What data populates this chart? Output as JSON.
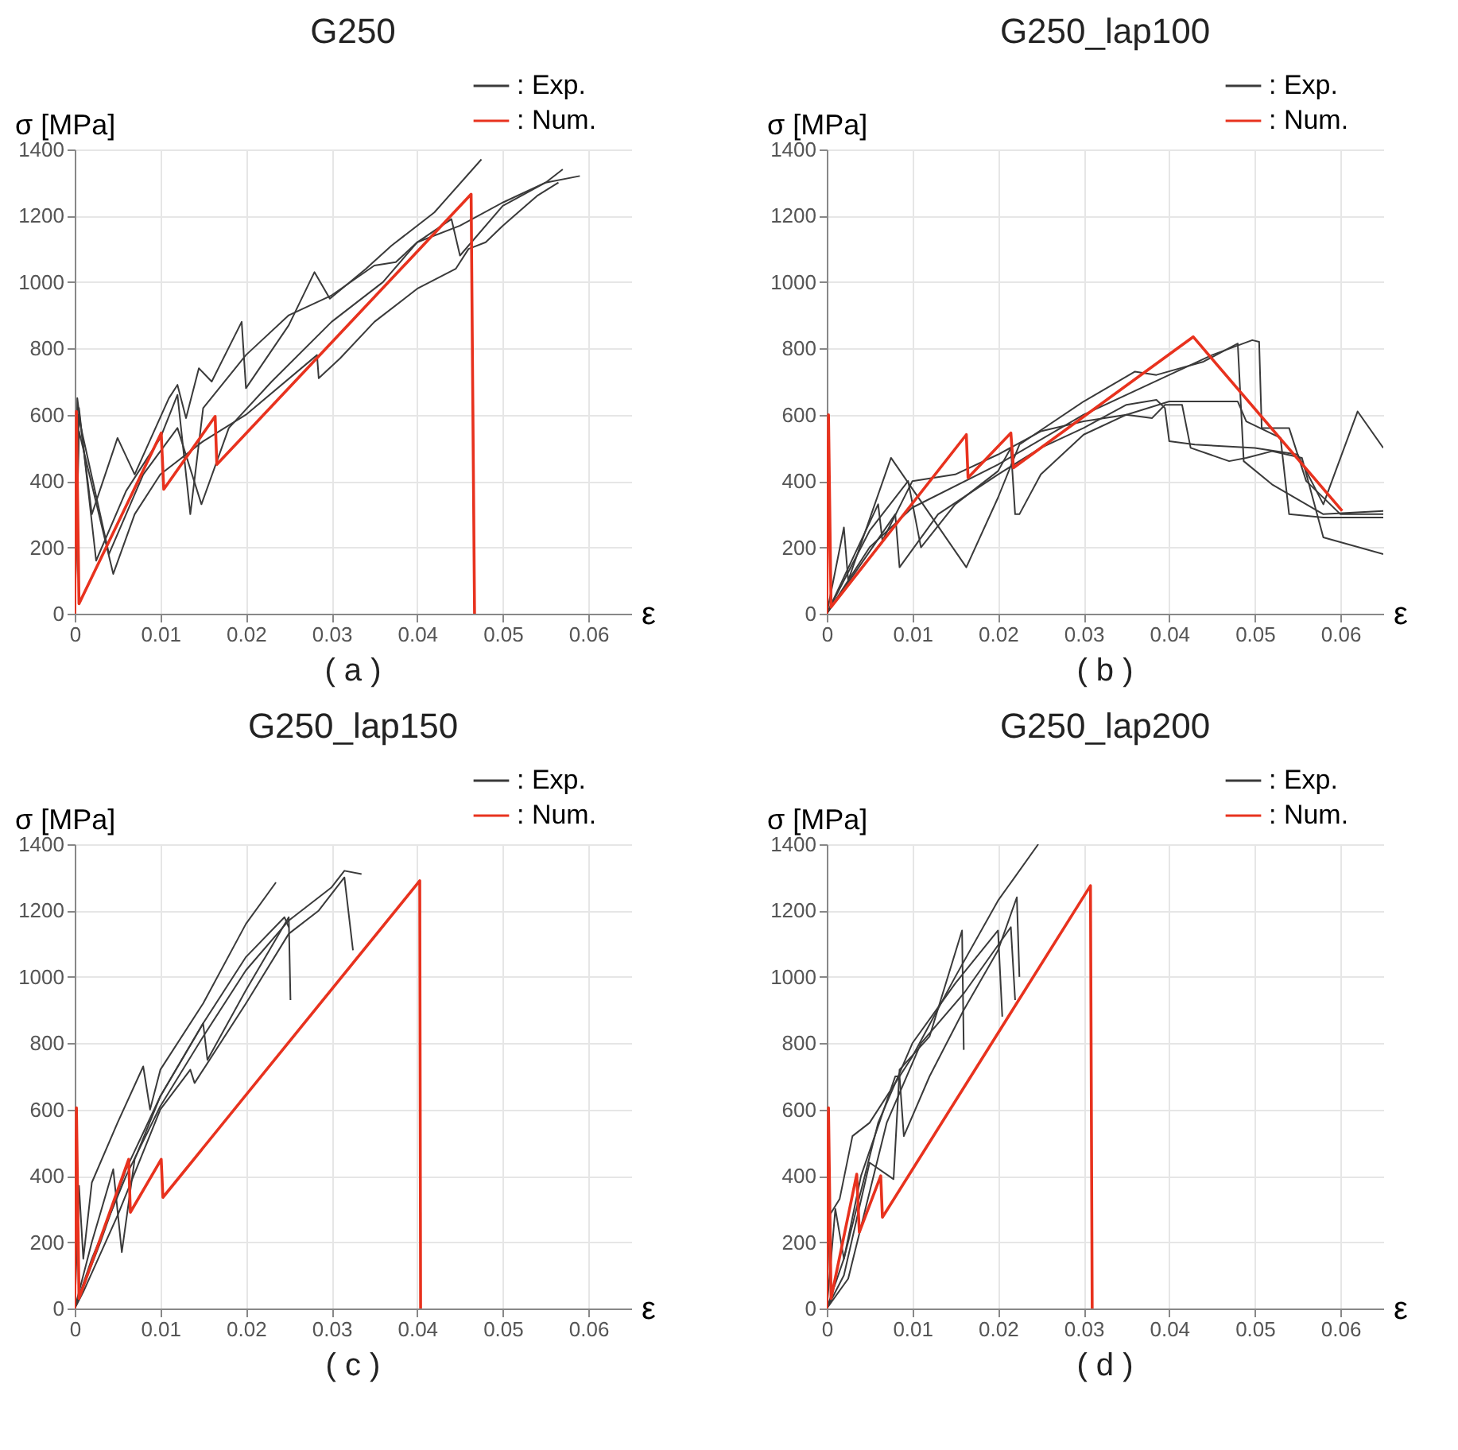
{
  "chart_data": [
    {
      "type": "line",
      "title": "G250",
      "xlabel": "ε",
      "ylabel": "σ [MPa]",
      "annotations": [
        "( a )"
      ],
      "xlim": [
        0,
        0.065
      ],
      "xticks": [
        0,
        0.01,
        0.02,
        0.03,
        0.04,
        0.05,
        0.06
      ],
      "ylim": [
        0,
        1400
      ],
      "yticks": [
        0,
        200,
        400,
        600,
        800,
        1000,
        1200,
        1400
      ],
      "grid": true,
      "legend": "top right",
      "series": [
        {
          "name": ": Exp.",
          "color": "#3a3a3a",
          "x": [
            0,
            0.0003,
            0.002,
            0.005,
            0.007,
            0.011,
            0.012,
            0.013,
            0.0145,
            0.016,
            0.0195,
            0.02,
            0.025,
            0.028,
            0.0298,
            0.034,
            0.037,
            0.042,
            0.0475
          ],
          "values": [
            0,
            650,
            300,
            530,
            420,
            650,
            690,
            590,
            740,
            700,
            880,
            680,
            870,
            1030,
            950,
            1040,
            1110,
            1210,
            1370
          ]
        },
        {
          "color": "#3a3a3a",
          "x": [
            0,
            0.0005,
            0.0025,
            0.006,
            0.01,
            0.012,
            0.0135,
            0.015,
            0.02,
            0.025,
            0.03,
            0.035,
            0.0375,
            0.04,
            0.045,
            0.05,
            0.055,
            0.057
          ],
          "values": [
            0,
            620,
            160,
            370,
            530,
            660,
            300,
            620,
            780,
            900,
            960,
            1050,
            1060,
            1120,
            1170,
            1240,
            1300,
            1340
          ]
        },
        {
          "color": "#3a3a3a",
          "x": [
            0,
            0.0004,
            0.004,
            0.008,
            0.012,
            0.0148,
            0.018,
            0.023,
            0.03,
            0.036,
            0.04,
            0.044,
            0.045,
            0.05,
            0.055,
            0.059
          ],
          "values": [
            0,
            600,
            180,
            420,
            560,
            330,
            560,
            700,
            880,
            1000,
            1120,
            1190,
            1080,
            1230,
            1300,
            1320
          ]
        },
        {
          "color": "#3a3a3a",
          "x": [
            0,
            0.0005,
            0.0045,
            0.007,
            0.01,
            0.015,
            0.02,
            0.0283,
            0.0285,
            0.031,
            0.035,
            0.04,
            0.0445,
            0.046,
            0.048,
            0.05,
            0.054,
            0.0565
          ],
          "values": [
            0,
            550,
            120,
            300,
            420,
            520,
            600,
            780,
            710,
            770,
            880,
            980,
            1040,
            1100,
            1120,
            1170,
            1260,
            1300
          ]
        },
        {
          "name": ": Num.",
          "color": "#e8321e",
          "x": [
            0,
            0.0002,
            0.0005,
            0.0101,
            0.0104,
            0.0164,
            0.0166,
            0.0463,
            0.0467
          ],
          "values": [
            0,
            610,
            30,
            545,
            375,
            595,
            450,
            1265,
            0
          ]
        }
      ]
    },
    {
      "type": "line",
      "title": "G250_lap100",
      "xlabel": "ε",
      "ylabel": "σ [MPa]",
      "annotations": [
        "( b )"
      ],
      "xlim": [
        0,
        0.065
      ],
      "xticks": [
        0,
        0.01,
        0.02,
        0.03,
        0.04,
        0.05,
        0.06
      ],
      "ylim": [
        0,
        1400
      ],
      "yticks": [
        0,
        200,
        400,
        600,
        800,
        1000,
        1200,
        1400
      ],
      "grid": true,
      "legend": "top right",
      "series": [
        {
          "name": ": Exp.",
          "color": "#3a3a3a",
          "x": [
            0,
            0.002,
            0.0025,
            0.0075,
            0.0163,
            0.02,
            0.0225,
            0.03,
            0.036,
            0.0385,
            0.044,
            0.048,
            0.0487,
            0.052,
            0.058,
            0.065
          ],
          "values": [
            0,
            260,
            100,
            470,
            140,
            350,
            510,
            640,
            730,
            720,
            760,
            815,
            460,
            390,
            300,
            310
          ]
        },
        {
          "color": "#3a3a3a",
          "x": [
            0,
            0.005,
            0.0095,
            0.011,
            0.015,
            0.02,
            0.0215,
            0.022,
            0.0225,
            0.025,
            0.03,
            0.035,
            0.04,
            0.048,
            0.049,
            0.053,
            0.054,
            0.058,
            0.065
          ],
          "values": [
            0,
            250,
            400,
            200,
            330,
            430,
            500,
            300,
            300,
            420,
            540,
            600,
            640,
            640,
            580,
            530,
            300,
            290,
            290
          ]
        },
        {
          "color": "#3a3a3a",
          "x": [
            0,
            0.006,
            0.0065,
            0.01,
            0.015,
            0.02,
            0.025,
            0.03,
            0.035,
            0.038,
            0.0395,
            0.0415,
            0.0425,
            0.047,
            0.049,
            0.052,
            0.0555,
            0.058,
            0.065
          ],
          "values": [
            0,
            330,
            220,
            400,
            420,
            480,
            550,
            580,
            600,
            590,
            630,
            630,
            500,
            460,
            470,
            490,
            470,
            230,
            180
          ]
        },
        {
          "color": "#3a3a3a",
          "x": [
            0,
            0.008,
            0.0085,
            0.013,
            0.02,
            0.025,
            0.03,
            0.035,
            0.0385,
            0.0395,
            0.04,
            0.043,
            0.05,
            0.055,
            0.058,
            0.062,
            0.065
          ],
          "values": [
            0,
            300,
            140,
            300,
            420,
            500,
            560,
            630,
            645,
            620,
            520,
            510,
            500,
            480,
            330,
            610,
            500
          ]
        },
        {
          "color": "#3a3a3a",
          "x": [
            0,
            0.005,
            0.01,
            0.02,
            0.03,
            0.04,
            0.045,
            0.0497,
            0.0505,
            0.0508,
            0.054,
            0.056,
            0.06,
            0.065
          ],
          "values": [
            0,
            200,
            320,
            450,
            600,
            720,
            780,
            825,
            820,
            560,
            560,
            400,
            300,
            300
          ]
        },
        {
          "name": ": Num.",
          "color": "#e8321e",
          "x": [
            0,
            0.0002,
            0.0005,
            0.0163,
            0.0165,
            0.0215,
            0.0218,
            0.0428,
            0.0602
          ],
          "values": [
            0,
            600,
            20,
            540,
            410,
            545,
            440,
            835,
            310
          ]
        }
      ]
    },
    {
      "type": "line",
      "title": "G250_lap150",
      "xlabel": "ε",
      "ylabel": "σ [MPa]",
      "annotations": [
        "( c )"
      ],
      "xlim": [
        0,
        0.065
      ],
      "xticks": [
        0,
        0.01,
        0.02,
        0.03,
        0.04,
        0.05,
        0.06
      ],
      "ylim": [
        0,
        1400
      ],
      "yticks": [
        0,
        200,
        400,
        600,
        800,
        1000,
        1200,
        1400
      ],
      "grid": true,
      "legend": "top right",
      "series": [
        {
          "name": ": Exp.",
          "color": "#3a3a3a",
          "x": [
            0,
            0.0005,
            0.001,
            0.002,
            0.005,
            0.008,
            0.0088,
            0.01,
            0.015,
            0.02,
            0.0235
          ],
          "values": [
            0,
            370,
            150,
            380,
            560,
            730,
            600,
            720,
            920,
            1160,
            1285
          ]
        },
        {
          "color": "#3a3a3a",
          "x": [
            0,
            0.002,
            0.0045,
            0.0055,
            0.007,
            0.01,
            0.015,
            0.0155,
            0.02,
            0.025,
            0.0252
          ],
          "values": [
            0,
            200,
            420,
            170,
            450,
            640,
            860,
            750,
            960,
            1180,
            930
          ]
        },
        {
          "color": "#3a3a3a",
          "x": [
            0,
            0.001,
            0.005,
            0.01,
            0.0135,
            0.014,
            0.02,
            0.025,
            0.0285,
            0.0315,
            0.0325
          ],
          "values": [
            0,
            50,
            280,
            600,
            720,
            680,
            920,
            1130,
            1200,
            1300,
            1080
          ]
        },
        {
          "color": "#3a3a3a",
          "x": [
            0,
            0.002,
            0.006,
            0.01,
            0.015,
            0.02,
            0.025,
            0.03,
            0.0315,
            0.0335
          ],
          "values": [
            0,
            150,
            400,
            610,
            820,
            1020,
            1170,
            1270,
            1320,
            1310
          ]
        },
        {
          "color": "#3a3a3a",
          "x": [
            0,
            0.003,
            0.006,
            0.01,
            0.015,
            0.02,
            0.0245,
            0.025
          ],
          "values": [
            0,
            200,
            420,
            640,
            860,
            1060,
            1180,
            1150
          ]
        },
        {
          "name": ": Num.",
          "color": "#e8321e",
          "x": [
            0,
            0.0002,
            0.0005,
            0.0063,
            0.0065,
            0.0101,
            0.0103,
            0.0403,
            0.0404
          ],
          "values": [
            0,
            605,
            30,
            450,
            290,
            450,
            335,
            1290,
            0
          ]
        }
      ]
    },
    {
      "type": "line",
      "title": "G250_lap200",
      "xlabel": "ε",
      "ylabel": "σ [MPa]",
      "annotations": [
        "( d )"
      ],
      "xlim": [
        0,
        0.065
      ],
      "xticks": [
        0,
        0.01,
        0.02,
        0.03,
        0.04,
        0.05,
        0.06
      ],
      "ylim": [
        0,
        1400
      ],
      "yticks": [
        0,
        200,
        400,
        600,
        800,
        1000,
        1200,
        1400
      ],
      "grid": true,
      "legend": "top right",
      "series": [
        {
          "name": ": Exp.",
          "color": "#3a3a3a",
          "x": [
            0,
            0.0003,
            0.0015,
            0.003,
            0.005,
            0.01,
            0.015,
            0.02,
            0.0247
          ],
          "values": [
            0,
            280,
            330,
            520,
            560,
            760,
            1000,
            1230,
            1400
          ]
        },
        {
          "color": "#3a3a3a",
          "x": [
            0,
            0.001,
            0.002,
            0.004,
            0.008,
            0.0085,
            0.009,
            0.012,
            0.016,
            0.02,
            0.0222,
            0.0225
          ],
          "values": [
            0,
            300,
            150,
            400,
            700,
            700,
            520,
            700,
            900,
            1080,
            1240,
            1000
          ]
        },
        {
          "color": "#3a3a3a",
          "x": [
            0,
            0.002,
            0.005,
            0.0078,
            0.0085,
            0.012,
            0.0158,
            0.016
          ],
          "values": [
            0,
            100,
            440,
            390,
            720,
            820,
            1140,
            780
          ]
        },
        {
          "color": "#3a3a3a",
          "x": [
            0,
            0.002,
            0.006,
            0.01,
            0.015,
            0.02,
            0.0205
          ],
          "values": [
            0,
            150,
            560,
            800,
            980,
            1140,
            880
          ]
        },
        {
          "color": "#3a3a3a",
          "x": [
            0,
            0.0025,
            0.007,
            0.011,
            0.016,
            0.0215,
            0.022
          ],
          "values": [
            0,
            90,
            560,
            800,
            950,
            1150,
            930
          ]
        },
        {
          "name": ": Num.",
          "color": "#e8321e",
          "x": [
            0,
            0.0002,
            0.0005,
            0.0035,
            0.0038,
            0.0063,
            0.0065,
            0.0308,
            0.031
          ],
          "values": [
            0,
            605,
            30,
            405,
            230,
            400,
            275,
            1275,
            0
          ]
        }
      ]
    }
  ]
}
